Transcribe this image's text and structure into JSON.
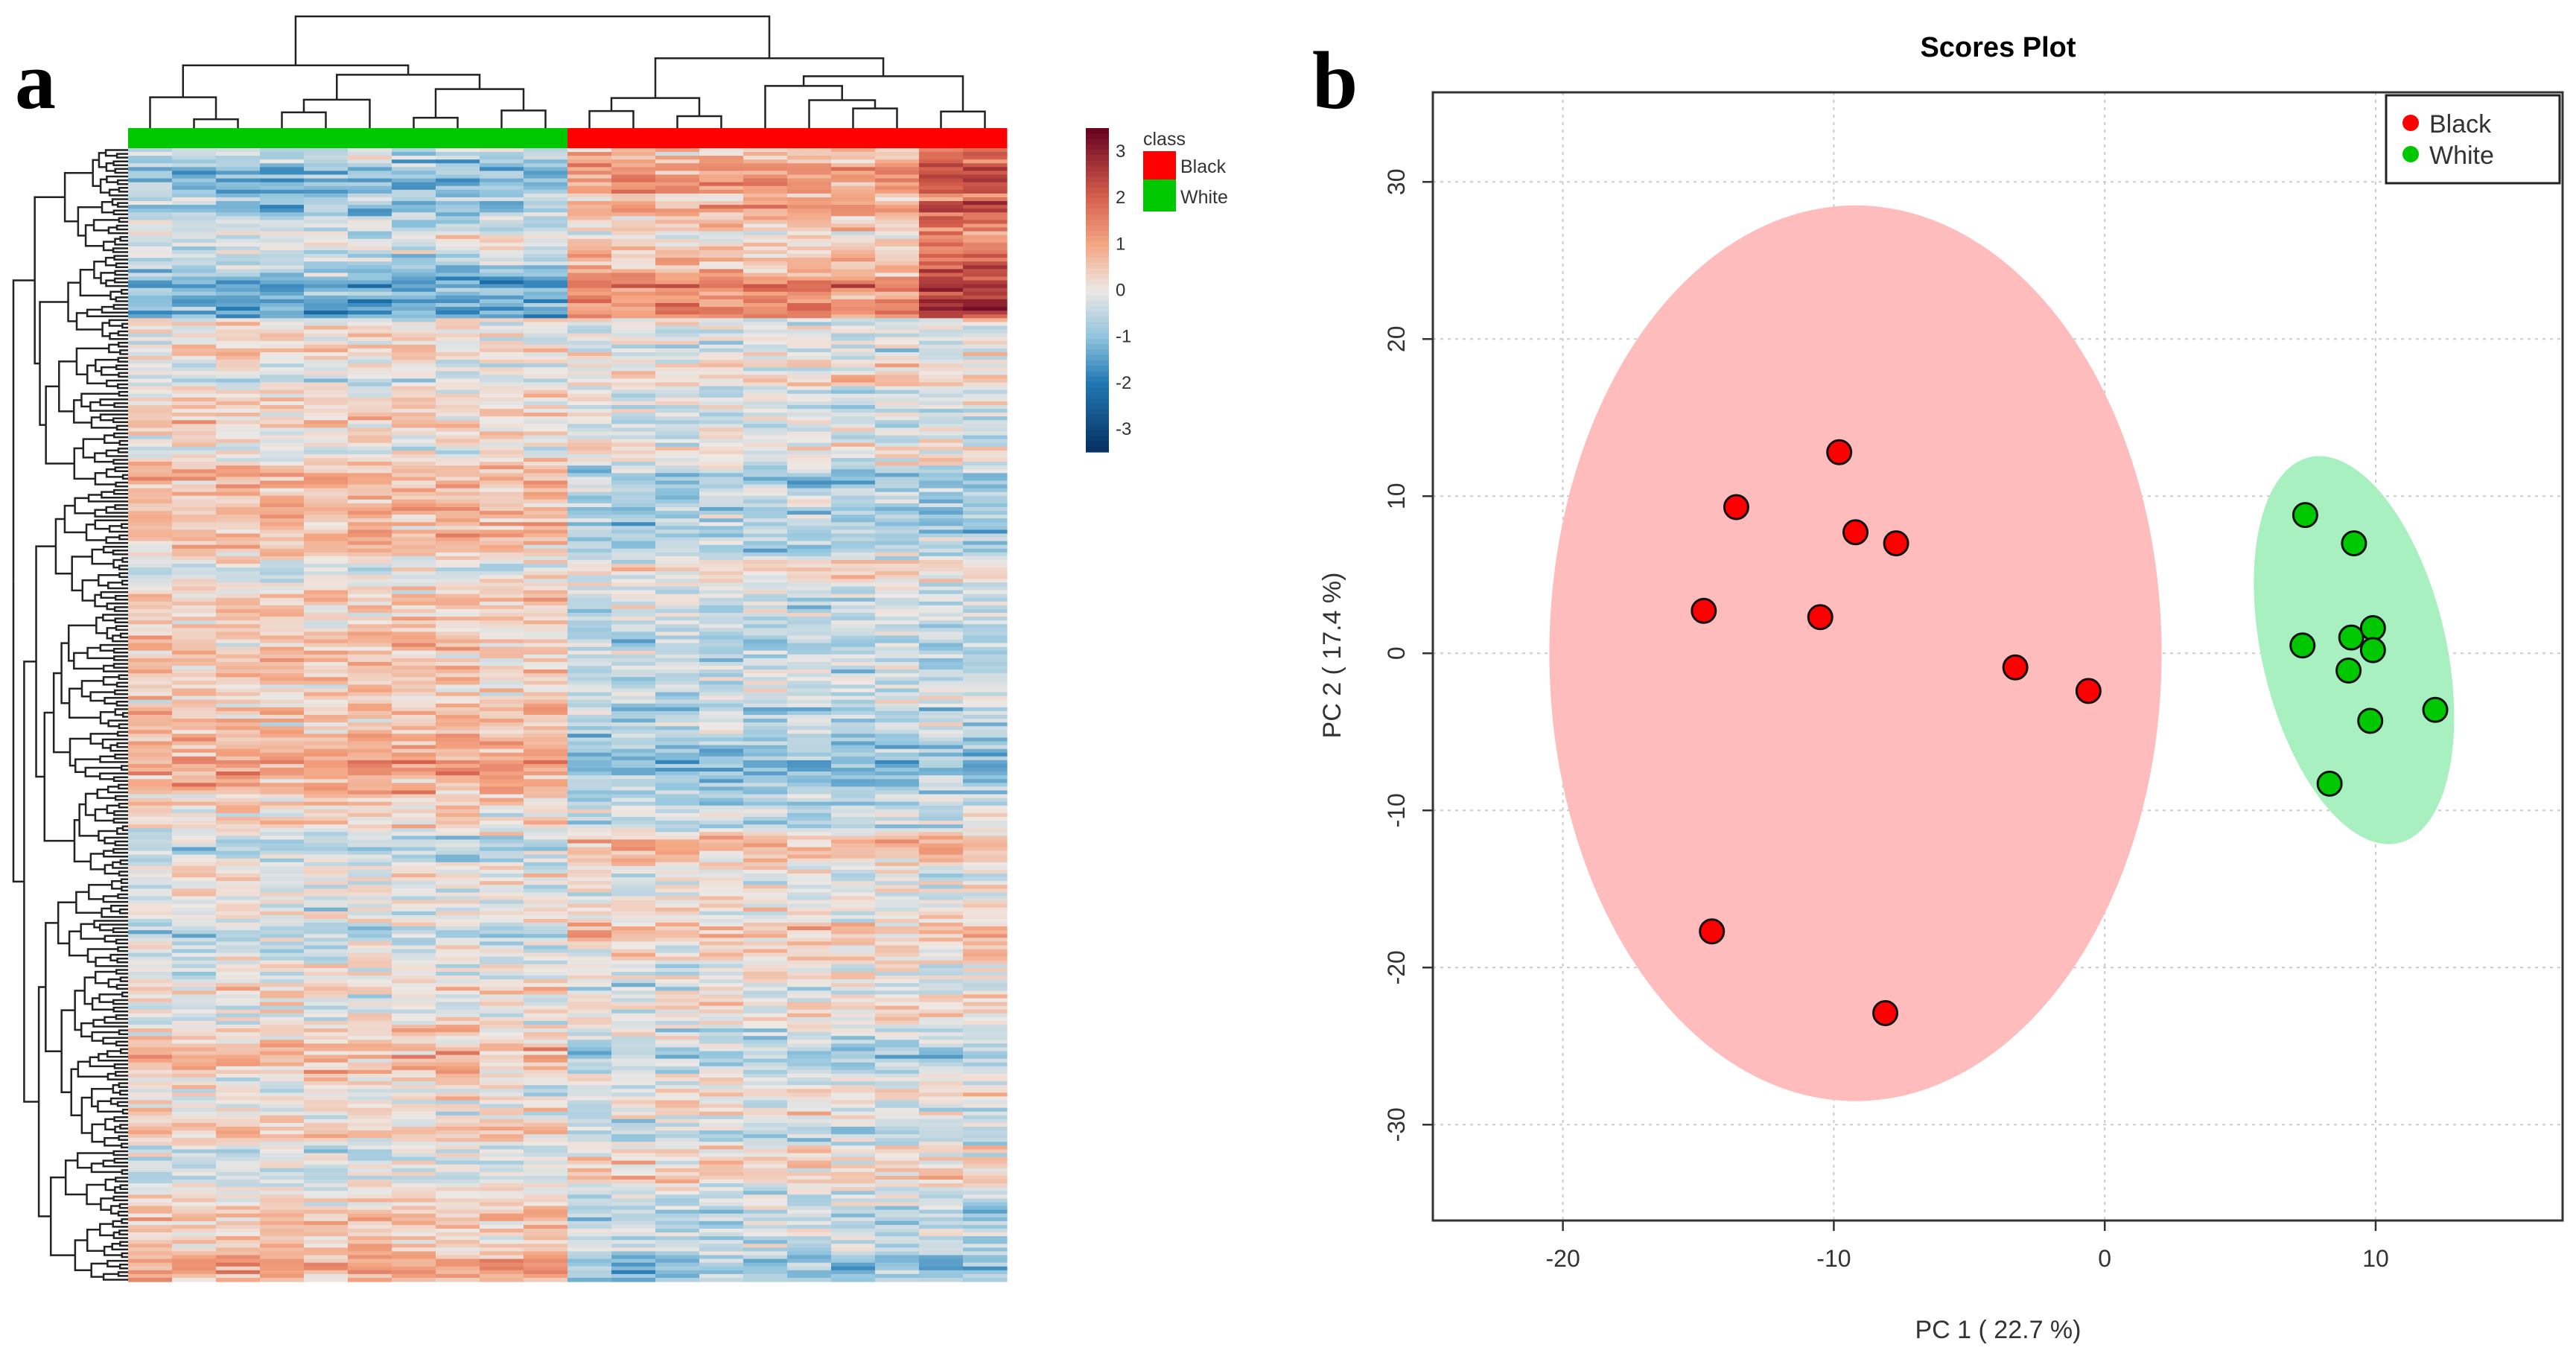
{
  "panel_a": {
    "label": "a",
    "colorbar": {
      "ticks": [
        "3",
        "2",
        "1",
        "0",
        "-1",
        "-2",
        "-3"
      ]
    },
    "class_legend": {
      "title": "class",
      "items": [
        {
          "name": "Black",
          "color": "#ff0000"
        },
        {
          "name": "White",
          "color": "#00c800"
        }
      ]
    }
  },
  "panel_b": {
    "label": "b"
  },
  "chart_data": [
    {
      "type": "heatmap",
      "title": "",
      "columns_per_class": {
        "White": 10,
        "Black": 10
      },
      "column_class_order": [
        "White",
        "Black"
      ],
      "color_range": [
        -3.5,
        3.5
      ],
      "colorbar_ticks": [
        3,
        2,
        1,
        0,
        -1,
        -2,
        -3
      ],
      "legend_title": "class",
      "legend": [
        "Black",
        "White"
      ],
      "row_dendrogram": true,
      "column_dendrogram": true
    },
    {
      "type": "scatter",
      "title": "Scores Plot",
      "xlabel": "PC 1 ( 22.7 %)",
      "ylabel": "PC 2 ( 17.4 %)",
      "xlim": [
        -24.8,
        16.9
      ],
      "ylim": [
        -36.1,
        35.7
      ],
      "xticks": [
        -20,
        -10,
        0,
        10
      ],
      "yticks": [
        30,
        20,
        10,
        0,
        -10,
        -20,
        -30
      ],
      "grid": true,
      "legend_position": "top-right",
      "series": [
        {
          "name": "Black",
          "color": "#ff0000",
          "ellipse_color": "#ffbcbc",
          "ellipse": {
            "cx": -9.2,
            "cy": 0,
            "rx": 11.3,
            "ry": 28.5,
            "angle": 0
          },
          "points": [
            [
              -9.8,
              12.8
            ],
            [
              -13.6,
              9.3
            ],
            [
              -9.2,
              7.7
            ],
            [
              -7.7,
              7.0
            ],
            [
              -14.8,
              2.7
            ],
            [
              -10.5,
              2.3
            ],
            [
              -3.3,
              -0.9
            ],
            [
              -0.6,
              -2.4
            ],
            [
              -14.5,
              -17.7
            ],
            [
              -8.1,
              -22.9
            ]
          ]
        },
        {
          "name": "White",
          "color": "#00c800",
          "ellipse_color": "#a8f0c0",
          "ellipse": {
            "cx": 9.2,
            "cy": 0.2,
            "rx": 3.4,
            "ry": 12.6,
            "angle": -13
          },
          "points": [
            [
              7.4,
              8.8
            ],
            [
              9.2,
              7.0
            ],
            [
              7.3,
              0.5
            ],
            [
              9.1,
              1.0
            ],
            [
              9.9,
              1.6
            ],
            [
              9.9,
              0.2
            ],
            [
              9.0,
              -1.1
            ],
            [
              9.8,
              -4.3
            ],
            [
              12.2,
              -3.6
            ],
            [
              8.3,
              -8.3
            ]
          ]
        }
      ]
    }
  ]
}
